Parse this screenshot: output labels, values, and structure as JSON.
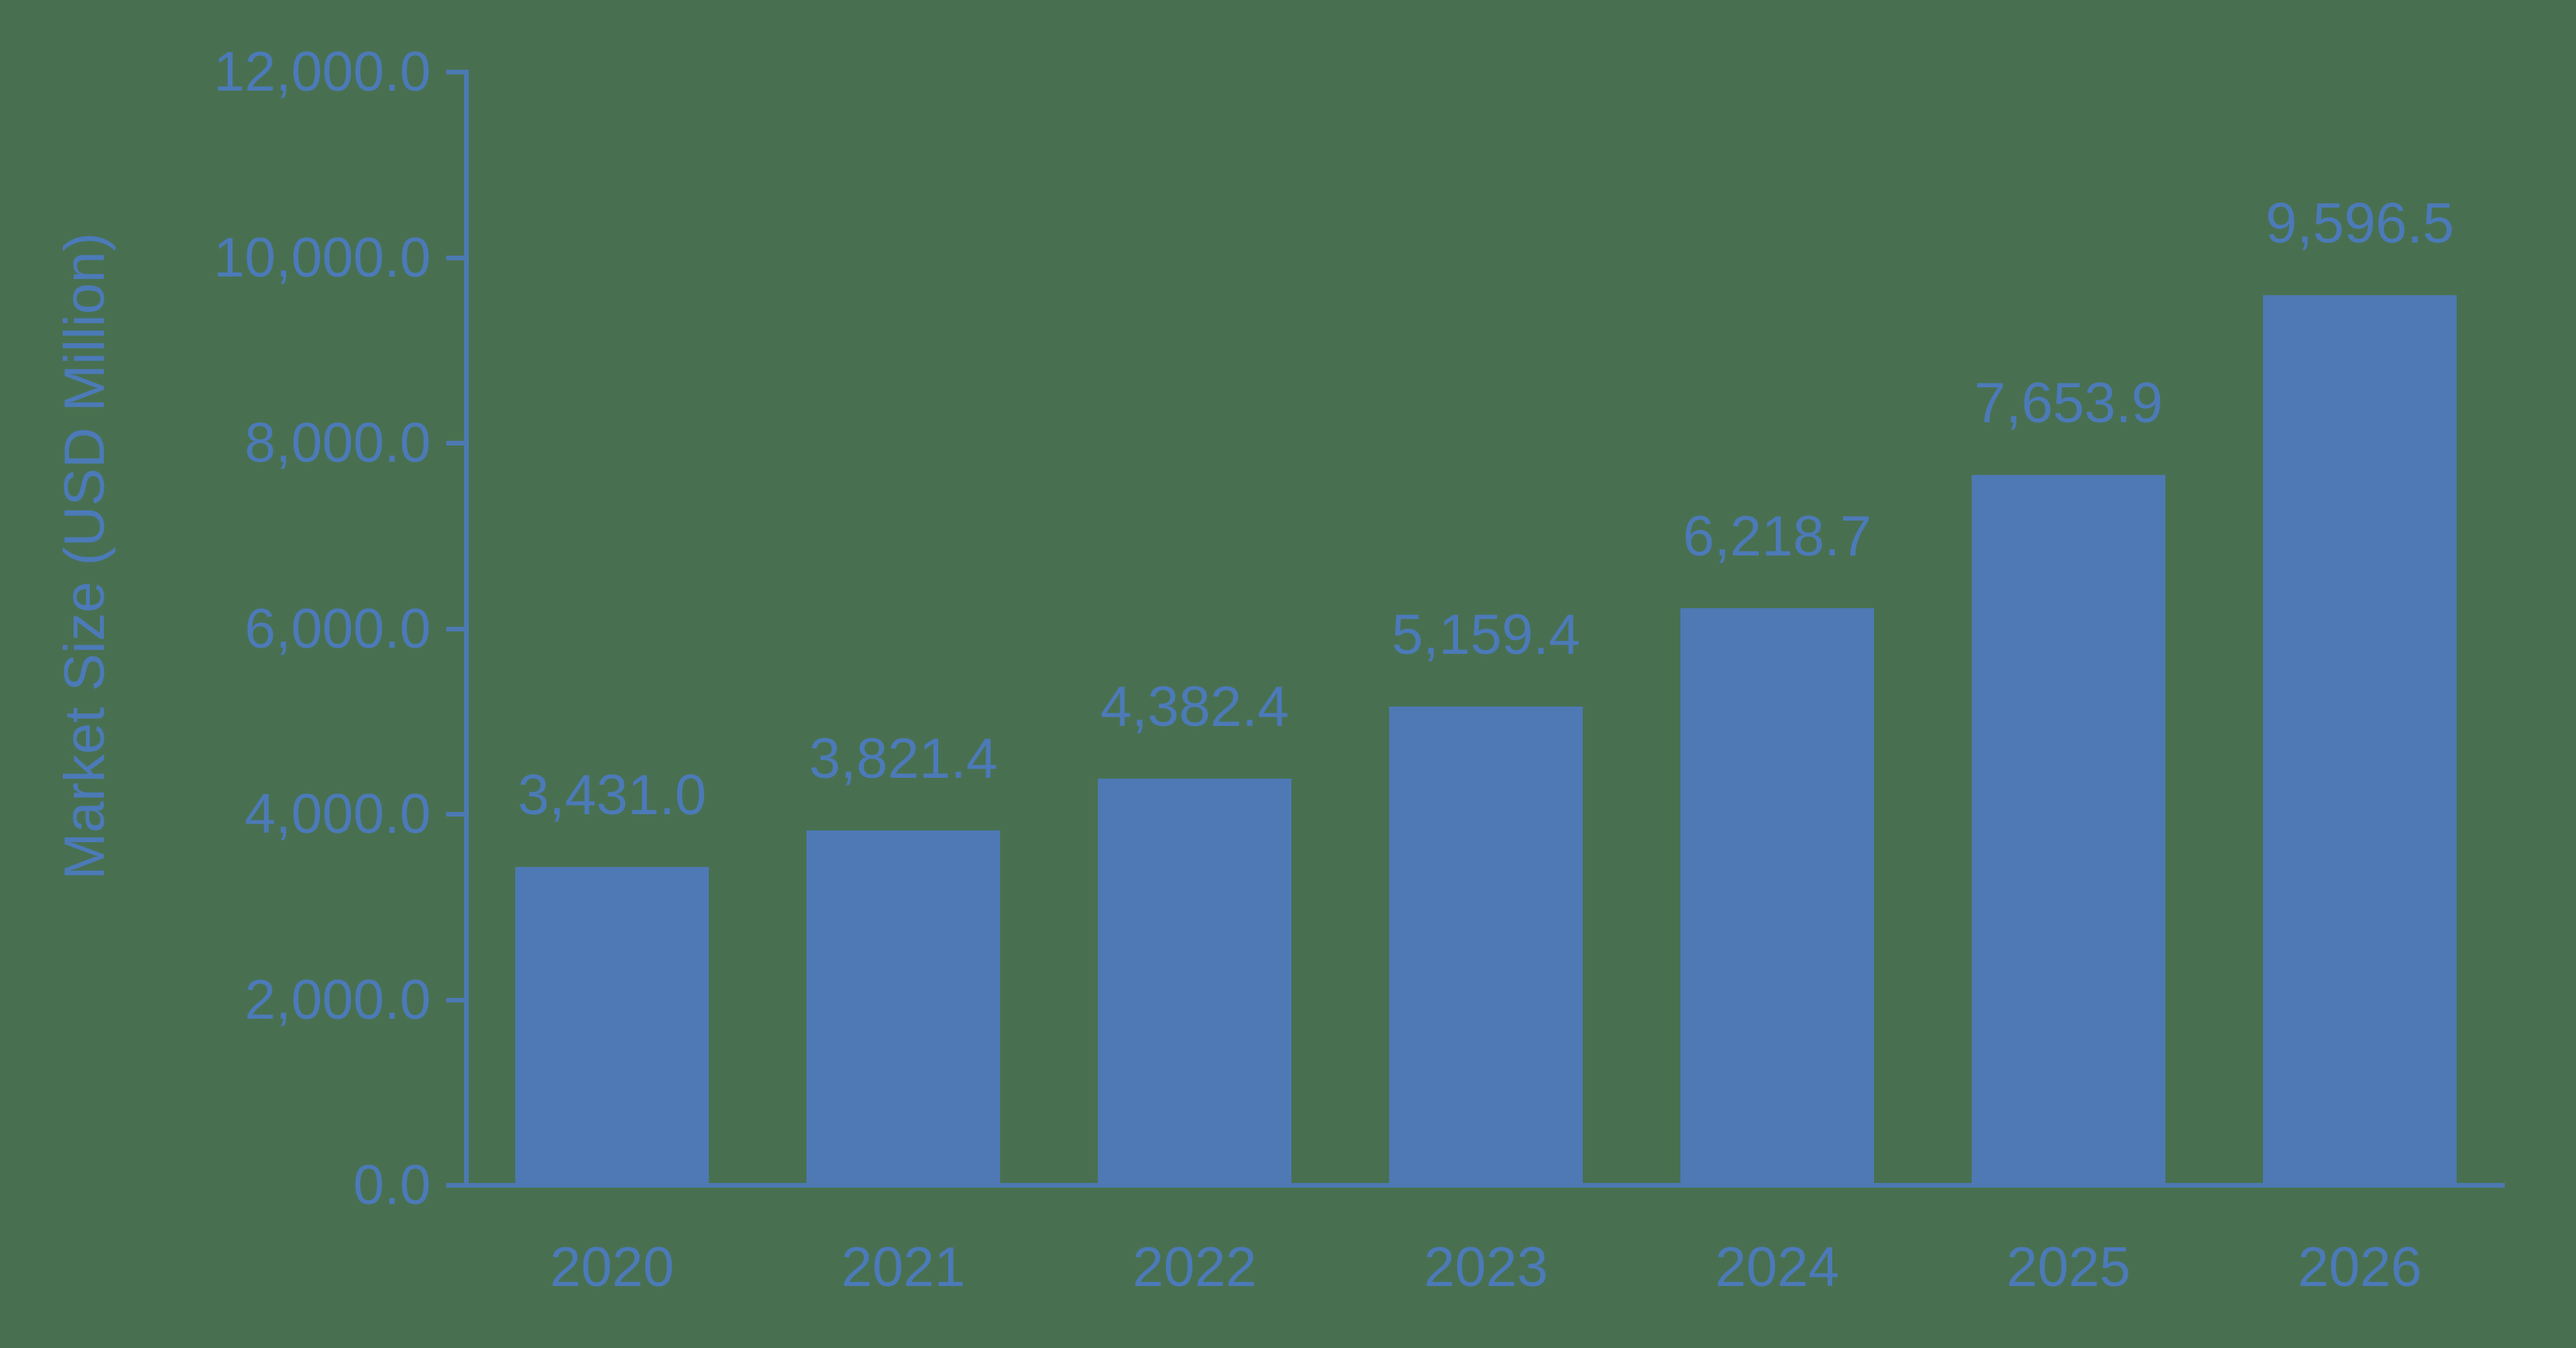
{
  "chart_data": {
    "type": "bar",
    "ylabel": "Market Size (USD Million)",
    "ylim": [
      0,
      12000
    ],
    "grid": "off",
    "legend": "none",
    "bar_color": "#4e79b4",
    "text_color": "#4c7ab8",
    "background_color": "#487050",
    "categories": [
      "2020",
      "2021",
      "2022",
      "2023",
      "2024",
      "2025",
      "2026"
    ],
    "values": [
      3431.0,
      3821.4,
      4382.4,
      5159.4,
      6218.7,
      7653.9,
      9596.5
    ],
    "value_labels": [
      "3,431.0",
      "3,821.4",
      "4,382.4",
      "5,159.4",
      "6,218.7",
      "7,653.9",
      "9,596.5"
    ],
    "y_ticks": [
      {
        "v": 0,
        "label": "0.0"
      },
      {
        "v": 2000,
        "label": "2,000.0"
      },
      {
        "v": 4000,
        "label": "4,000.0"
      },
      {
        "v": 6000,
        "label": "6,000.0"
      },
      {
        "v": 8000,
        "label": "8,000.0"
      },
      {
        "v": 10000,
        "label": "10,000.0"
      },
      {
        "v": 12000,
        "label": "12,000.0"
      }
    ]
  }
}
